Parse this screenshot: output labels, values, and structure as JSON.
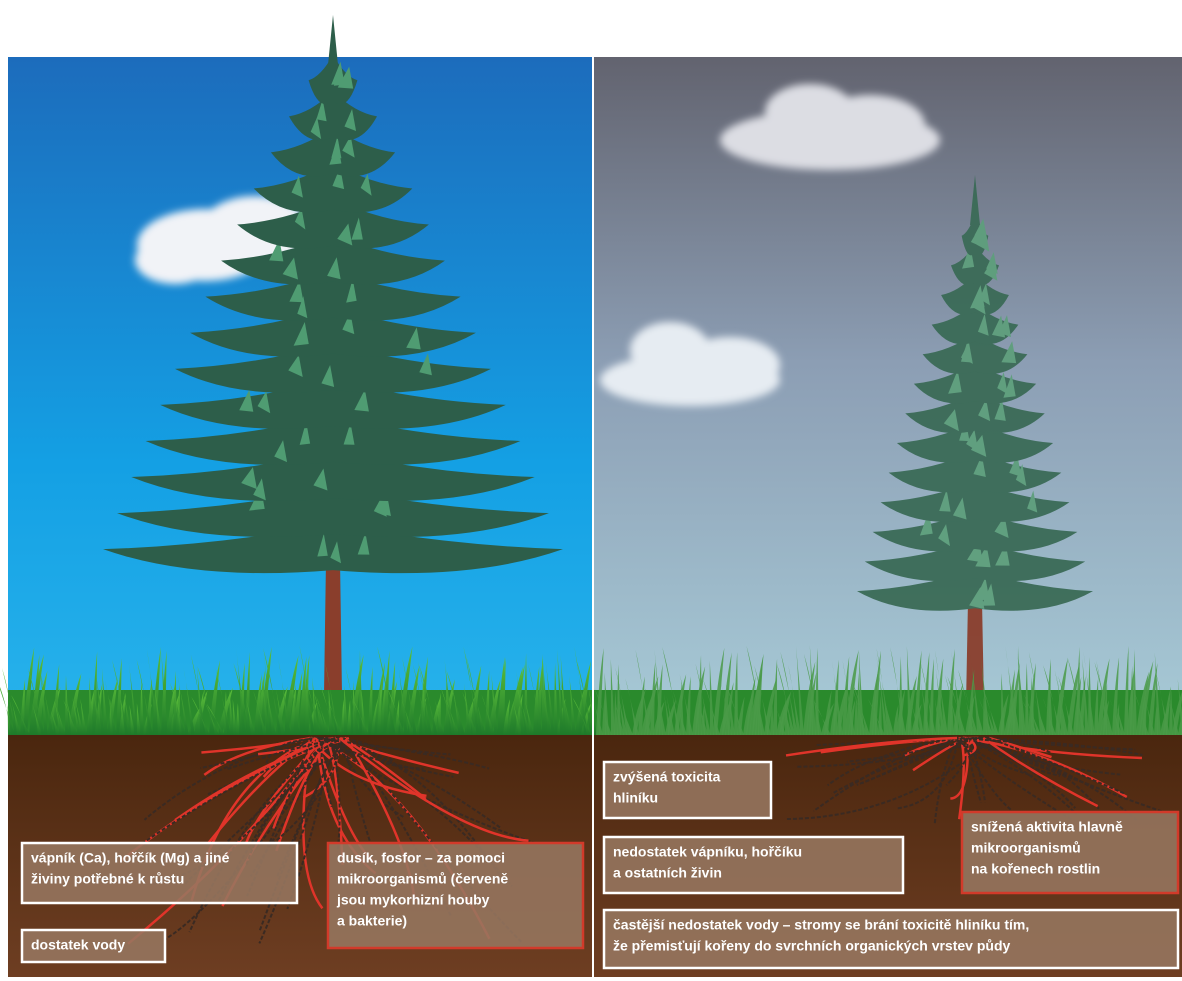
{
  "left": {
    "labels": [
      {
        "lines": [
          "vápník (Ca), hořčík (Mg) a jiné",
          "živiny potřebné k růstu"
        ]
      },
      {
        "lines": [
          "dusík, fosfor – za pomoci",
          "mikroorganismů (červeně",
          "jsou mykorhizní houby",
          "a bakterie)"
        ]
      },
      {
        "lines": [
          "dostatek vody"
        ]
      }
    ]
  },
  "right": {
    "labels": [
      {
        "lines": [
          "zvýšená toxicita",
          "hliníku"
        ]
      },
      {
        "lines": [
          "nedostatek vápníku, hořčíku",
          "a ostatních živin"
        ]
      },
      {
        "lines": [
          "snížená aktivita hlavně",
          "mikroorganismů",
          "na kořenech rostlin"
        ]
      },
      {
        "lines": [
          "častější nedostatek vody – stromy se brání toxicitě hliníku tím,",
          "že přemisťují kořeny do svrchních organických vrstev půdy"
        ]
      }
    ]
  }
}
